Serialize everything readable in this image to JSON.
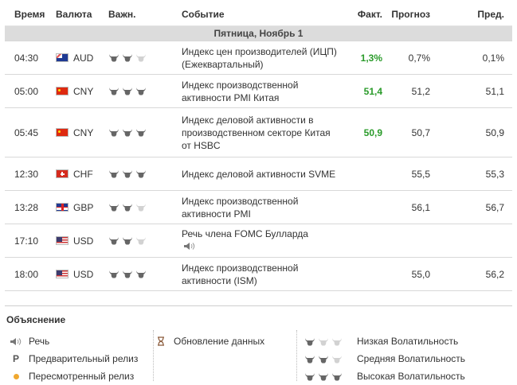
{
  "headers": {
    "time": "Время",
    "currency": "Валюта",
    "importance": "Важн.",
    "event": "Событие",
    "actual": "Факт.",
    "forecast": "Прогноз",
    "previous": "Пред."
  },
  "day_label": "Пятница, Ноябрь 1",
  "events": [
    {
      "time": "04:30",
      "flag": "au",
      "currency": "AUD",
      "volatility": 2,
      "event": "Индекс цен производителей (ИЦП) (Ежеквартальный)",
      "actual": "1,3%",
      "forecast": "0,7%",
      "previous": "0,1%",
      "speech": false
    },
    {
      "time": "05:00",
      "flag": "cn",
      "currency": "CNY",
      "volatility": 3,
      "event": "Индекс производственной активности PMI Китая",
      "actual": "51,4",
      "forecast": "51,2",
      "previous": "51,1",
      "speech": false
    },
    {
      "time": "05:45",
      "flag": "cn",
      "currency": "CNY",
      "volatility": 3,
      "event": "Индекс деловой активности в производственном секторе Китая от HSBC",
      "actual": "50,9",
      "forecast": "50,7",
      "previous": "50,9",
      "speech": false
    },
    {
      "time": "12:30",
      "flag": "ch",
      "currency": "CHF",
      "volatility": 3,
      "event": "Индекс деловой активности SVME",
      "actual": "",
      "forecast": "55,5",
      "previous": "55,3",
      "speech": false
    },
    {
      "time": "13:28",
      "flag": "gb",
      "currency": "GBP",
      "volatility": 2,
      "event": "Индекс производственной активности PMI",
      "actual": "",
      "forecast": "56,1",
      "previous": "56,7",
      "speech": false
    },
    {
      "time": "17:10",
      "flag": "us",
      "currency": "USD",
      "volatility": 2,
      "event": "Речь члена FOMC Булларда",
      "actual": "",
      "forecast": "",
      "previous": "",
      "speech": true
    },
    {
      "time": "18:00",
      "flag": "us",
      "currency": "USD",
      "volatility": 3,
      "event": "Индекс производственной активности (ISM)",
      "actual": "",
      "forecast": "55,0",
      "previous": "56,2",
      "speech": false
    }
  ],
  "legend": {
    "title": "Объяснение",
    "col1": [
      {
        "icon": "speaker-icon",
        "label": "Речь"
      },
      {
        "icon": "P",
        "label": "Предварительный релиз"
      },
      {
        "icon": "revised-dot-icon",
        "label": "Пересмотренный релиз"
      }
    ],
    "col2": [
      {
        "icon": "hourglass-icon",
        "label": "Обновление данных"
      }
    ],
    "col3": [
      {
        "level": 1,
        "label": "Низкая Волатильность"
      },
      {
        "level": 2,
        "label": "Средняя Волатильность"
      },
      {
        "level": 3,
        "label": "Высокая Волатильность"
      }
    ]
  },
  "colors": {
    "actual_positive": "#2a9b2a",
    "bull_active": "#666666",
    "bull_inactive": "#d2d2d2",
    "day_bar": "#dcdcdc"
  }
}
